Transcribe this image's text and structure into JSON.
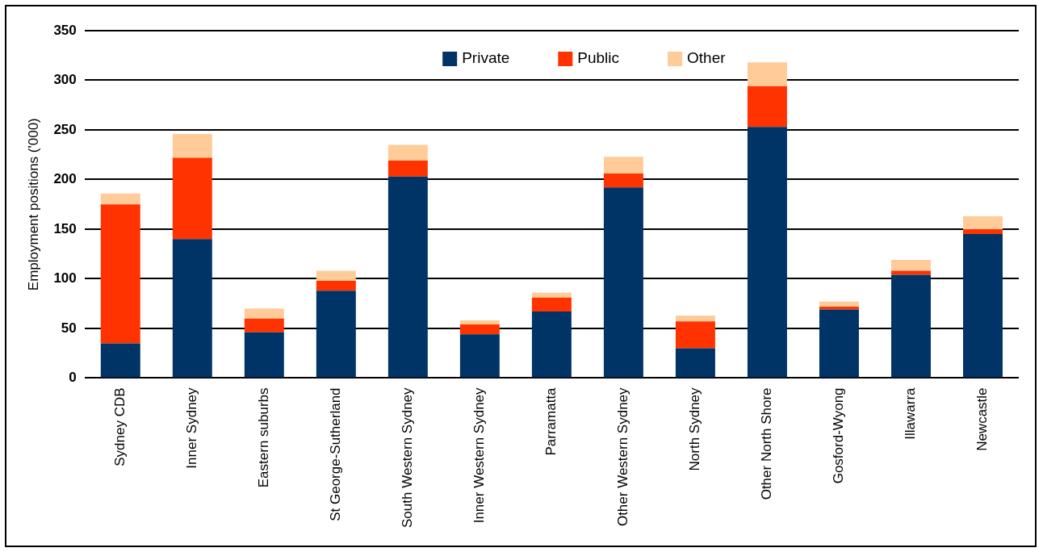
{
  "chart_data": {
    "type": "bar",
    "stacked": true,
    "ylabel": "Employment positions ('000)",
    "categories": [
      "Sydney CDB",
      "Inner Sydney",
      "Eastern suburbs",
      "St George-Sutherland",
      "South Western Sydney",
      "Inner Western Sydney",
      "Parramatta",
      "Other Western Sydney",
      "North Sydney",
      "Other North Shore",
      "Gosford-Wyong",
      "Illawarra",
      "Newcastle"
    ],
    "series": [
      {
        "name": "Private",
        "color": "#003366",
        "values": [
          35,
          140,
          46,
          88,
          203,
          44,
          67,
          192,
          30,
          253,
          69,
          104,
          145
        ]
      },
      {
        "name": "Public",
        "color": "#ff3300",
        "values": [
          140,
          82,
          14,
          10,
          16,
          10,
          14,
          14,
          27,
          41,
          3,
          4,
          5
        ]
      },
      {
        "name": "Other",
        "color": "#ffcc99",
        "values": [
          11,
          24,
          10,
          10,
          16,
          4,
          5,
          17,
          6,
          24,
          5,
          11,
          13
        ]
      }
    ],
    "ylim": [
      0,
      350
    ],
    "yticks": [
      0,
      50,
      100,
      150,
      200,
      250,
      300,
      350
    ],
    "grid": "y",
    "legend": "top"
  }
}
